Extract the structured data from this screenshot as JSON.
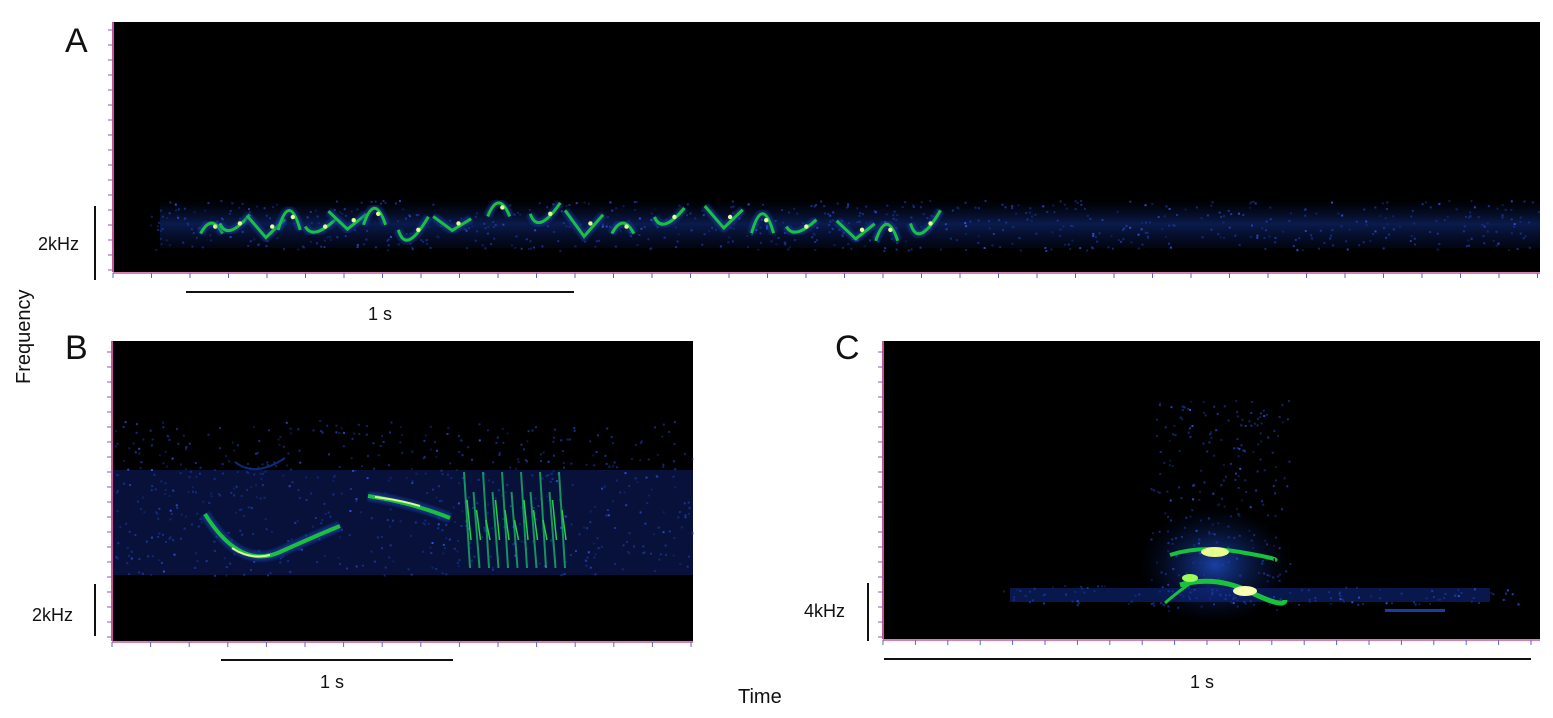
{
  "figure": {
    "y_axis_title": "Frequency",
    "x_axis_title": "Time"
  },
  "colors": {
    "background": "#000000",
    "noise": "#1a3ca8",
    "signal": "#0fbf3a",
    "peak": "#f4ff9e",
    "axis_pink": "#c8559c",
    "tick_blue": "#5566cc"
  },
  "chart_data": [
    {
      "type": "heatmap",
      "panel": "A",
      "freq_scale_label": "2kHz",
      "time_scale_label": "1 s",
      "description_of_marks": "series of short frequency-modulated whistle notes near 2 kHz",
      "notes": [
        {
          "t": 0.2,
          "f": 2.2
        },
        {
          "t": 0.26,
          "f": 2.3
        },
        {
          "t": 0.34,
          "f": 2.2
        },
        {
          "t": 0.4,
          "f": 2.5
        },
        {
          "t": 0.48,
          "f": 2.2
        },
        {
          "t": 0.55,
          "f": 2.4
        },
        {
          "t": 0.62,
          "f": 2.6
        },
        {
          "t": 0.72,
          "f": 2.1
        },
        {
          "t": 0.82,
          "f": 2.3
        },
        {
          "t": 0.94,
          "f": 2.8
        },
        {
          "t": 1.06,
          "f": 2.6
        },
        {
          "t": 1.16,
          "f": 2.3
        },
        {
          "t": 1.26,
          "f": 2.2
        },
        {
          "t": 1.38,
          "f": 2.5
        },
        {
          "t": 1.52,
          "f": 2.5
        },
        {
          "t": 1.62,
          "f": 2.4
        },
        {
          "t": 1.72,
          "f": 2.2
        },
        {
          "t": 1.86,
          "f": 2.1
        },
        {
          "t": 1.94,
          "f": 2.1
        },
        {
          "t": 2.04,
          "f": 2.3
        }
      ]
    },
    {
      "type": "heatmap",
      "panel": "B",
      "freq_scale_label": "2kHz",
      "time_scale_label": "1 s",
      "description_of_marks": "descending-ascending whistle, rising whistle, then rapid trill"
    },
    {
      "type": "heatmap",
      "panel": "C",
      "freq_scale_label": "4kHz",
      "time_scale_label": "1 s",
      "description_of_marks": "broadband noisy call with energy concentrated at low frequencies"
    }
  ]
}
